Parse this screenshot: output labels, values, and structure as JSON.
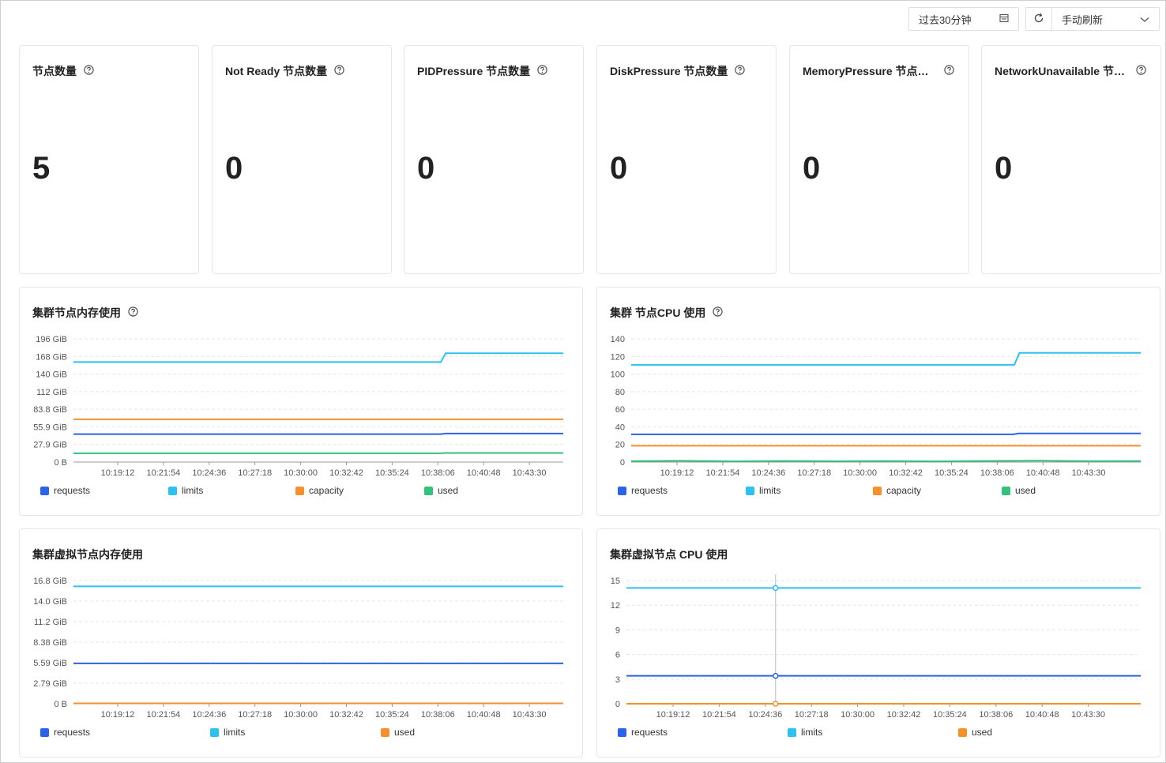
{
  "toolbar": {
    "time_range": "过去30分钟",
    "refresh_mode": "手动刷新"
  },
  "stats": [
    {
      "title": "节点数量",
      "value": "5"
    },
    {
      "title": "Not Ready 节点数量",
      "value": "0"
    },
    {
      "title": "PIDPressure 节点数量",
      "value": "0"
    },
    {
      "title": "DiskPressure 节点数量",
      "value": "0"
    },
    {
      "title": "MemoryPressure 节点数量",
      "value": "0"
    },
    {
      "title": "NetworkUnavailable 节点...",
      "value": "0"
    }
  ],
  "colors": {
    "requests": "#2c62ea",
    "limits": "#2cc1ee",
    "capacity": "#f78f2b",
    "used": "#32c27a"
  },
  "chart_data": [
    {
      "type": "line",
      "title": "集群节点内存使用",
      "help": true,
      "x_ticks": [
        "10:19:12",
        "10:21:54",
        "10:24:36",
        "10:27:18",
        "10:30:00",
        "10:32:42",
        "10:35:24",
        "10:38:06",
        "10:40:48",
        "10:43:30"
      ],
      "y_ticks": [
        "196 GiB",
        "168 GiB",
        "140 GiB",
        "112 GiB",
        "83.8 GiB",
        "55.9 GiB",
        "27.9 GiB",
        "0 B"
      ],
      "ylim": [
        0,
        196
      ],
      "series": [
        {
          "name": "requests",
          "color": "#2c62ea",
          "values": [
            [
              0,
              44.5
            ],
            [
              0.75,
              44.5
            ],
            [
              0.76,
              45.3
            ],
            [
              1,
              45.3
            ]
          ]
        },
        {
          "name": "limits",
          "color": "#2cc1ee",
          "values": [
            [
              0,
              159
            ],
            [
              0.75,
              159
            ],
            [
              0.76,
              173
            ],
            [
              1,
              173
            ]
          ]
        },
        {
          "name": "capacity",
          "color": "#f78f2b",
          "values": [
            [
              0,
              68
            ],
            [
              1,
              68
            ]
          ]
        },
        {
          "name": "used",
          "color": "#32c27a",
          "values": [
            [
              0,
              14
            ],
            [
              0.75,
              14
            ],
            [
              0.76,
              14.5
            ],
            [
              1,
              14.5
            ]
          ]
        }
      ]
    },
    {
      "type": "line",
      "title": "集群 节点CPU 使用",
      "help": true,
      "x_ticks": [
        "10:19:12",
        "10:21:54",
        "10:24:36",
        "10:27:18",
        "10:30:00",
        "10:32:42",
        "10:35:24",
        "10:38:06",
        "10:40:48",
        "10:43:30"
      ],
      "y_ticks": [
        "140",
        "120",
        "100",
        "80",
        "60",
        "40",
        "20",
        "0"
      ],
      "ylim": [
        0,
        140
      ],
      "series": [
        {
          "name": "requests",
          "color": "#2c62ea",
          "values": [
            [
              0,
              31.5
            ],
            [
              0.75,
              31.5
            ],
            [
              0.76,
              32.5
            ],
            [
              1,
              32.5
            ]
          ]
        },
        {
          "name": "limits",
          "color": "#2cc1ee",
          "values": [
            [
              0,
              110.5
            ],
            [
              0.752,
              110.5
            ],
            [
              0.762,
              124
            ],
            [
              1,
              124
            ]
          ]
        },
        {
          "name": "capacity",
          "color": "#f78f2b",
          "values": [
            [
              0,
              18.5
            ],
            [
              1,
              18.5
            ]
          ]
        },
        {
          "name": "used",
          "color": "#32c27a",
          "values": [
            [
              0,
              1
            ],
            [
              0.1,
              1.4
            ],
            [
              0.2,
              0.8
            ],
            [
              0.3,
              1.3
            ],
            [
              0.4,
              0.9
            ],
            [
              0.5,
              1.2
            ],
            [
              0.6,
              0.8
            ],
            [
              0.7,
              1.3
            ],
            [
              0.8,
              1.5
            ],
            [
              0.9,
              1
            ],
            [
              1,
              1.2
            ]
          ]
        }
      ]
    },
    {
      "type": "line",
      "title": "集群虚拟节点内存使用",
      "help": false,
      "x_ticks": [
        "10:19:12",
        "10:21:54",
        "10:24:36",
        "10:27:18",
        "10:30:00",
        "10:32:42",
        "10:35:24",
        "10:38:06",
        "10:40:48",
        "10:43:30"
      ],
      "y_ticks": [
        "16.8 GiB",
        "14.0 GiB",
        "11.2 GiB",
        "8.38 GiB",
        "5.59 GiB",
        "2.79 GiB",
        "0 B"
      ],
      "ylim": [
        0,
        16.8
      ],
      "series": [
        {
          "name": "requests",
          "color": "#2c62ea",
          "values": [
            [
              0,
              5.5
            ],
            [
              1,
              5.5
            ]
          ]
        },
        {
          "name": "limits",
          "color": "#2cc1ee",
          "values": [
            [
              0,
              16
            ],
            [
              1,
              16
            ]
          ]
        },
        {
          "name": "used",
          "color": "#f78f2b",
          "values": [
            [
              0,
              0.05
            ],
            [
              1,
              0.05
            ]
          ]
        }
      ]
    },
    {
      "type": "line",
      "title": "集群虚拟节点 CPU 使用",
      "help": false,
      "x_ticks": [
        "10:19:12",
        "10:21:54",
        "10:24:36",
        "10:27:18",
        "10:30:00",
        "10:32:42",
        "10:35:24",
        "10:38:06",
        "10:40:48",
        "10:43:30"
      ],
      "y_ticks": [
        "15",
        "12",
        "9",
        "6",
        "3",
        "0"
      ],
      "ylim": [
        0,
        15
      ],
      "cursor_x": 0.29,
      "series": [
        {
          "name": "requests",
          "color": "#2c62ea",
          "values": [
            [
              0,
              3.4
            ],
            [
              1,
              3.4
            ]
          ]
        },
        {
          "name": "limits",
          "color": "#2cc1ee",
          "values": [
            [
              0,
              14.1
            ],
            [
              1,
              14.1
            ]
          ]
        },
        {
          "name": "used",
          "color": "#f78f2b",
          "values": [
            [
              0,
              0
            ],
            [
              1,
              0
            ]
          ]
        }
      ]
    }
  ]
}
